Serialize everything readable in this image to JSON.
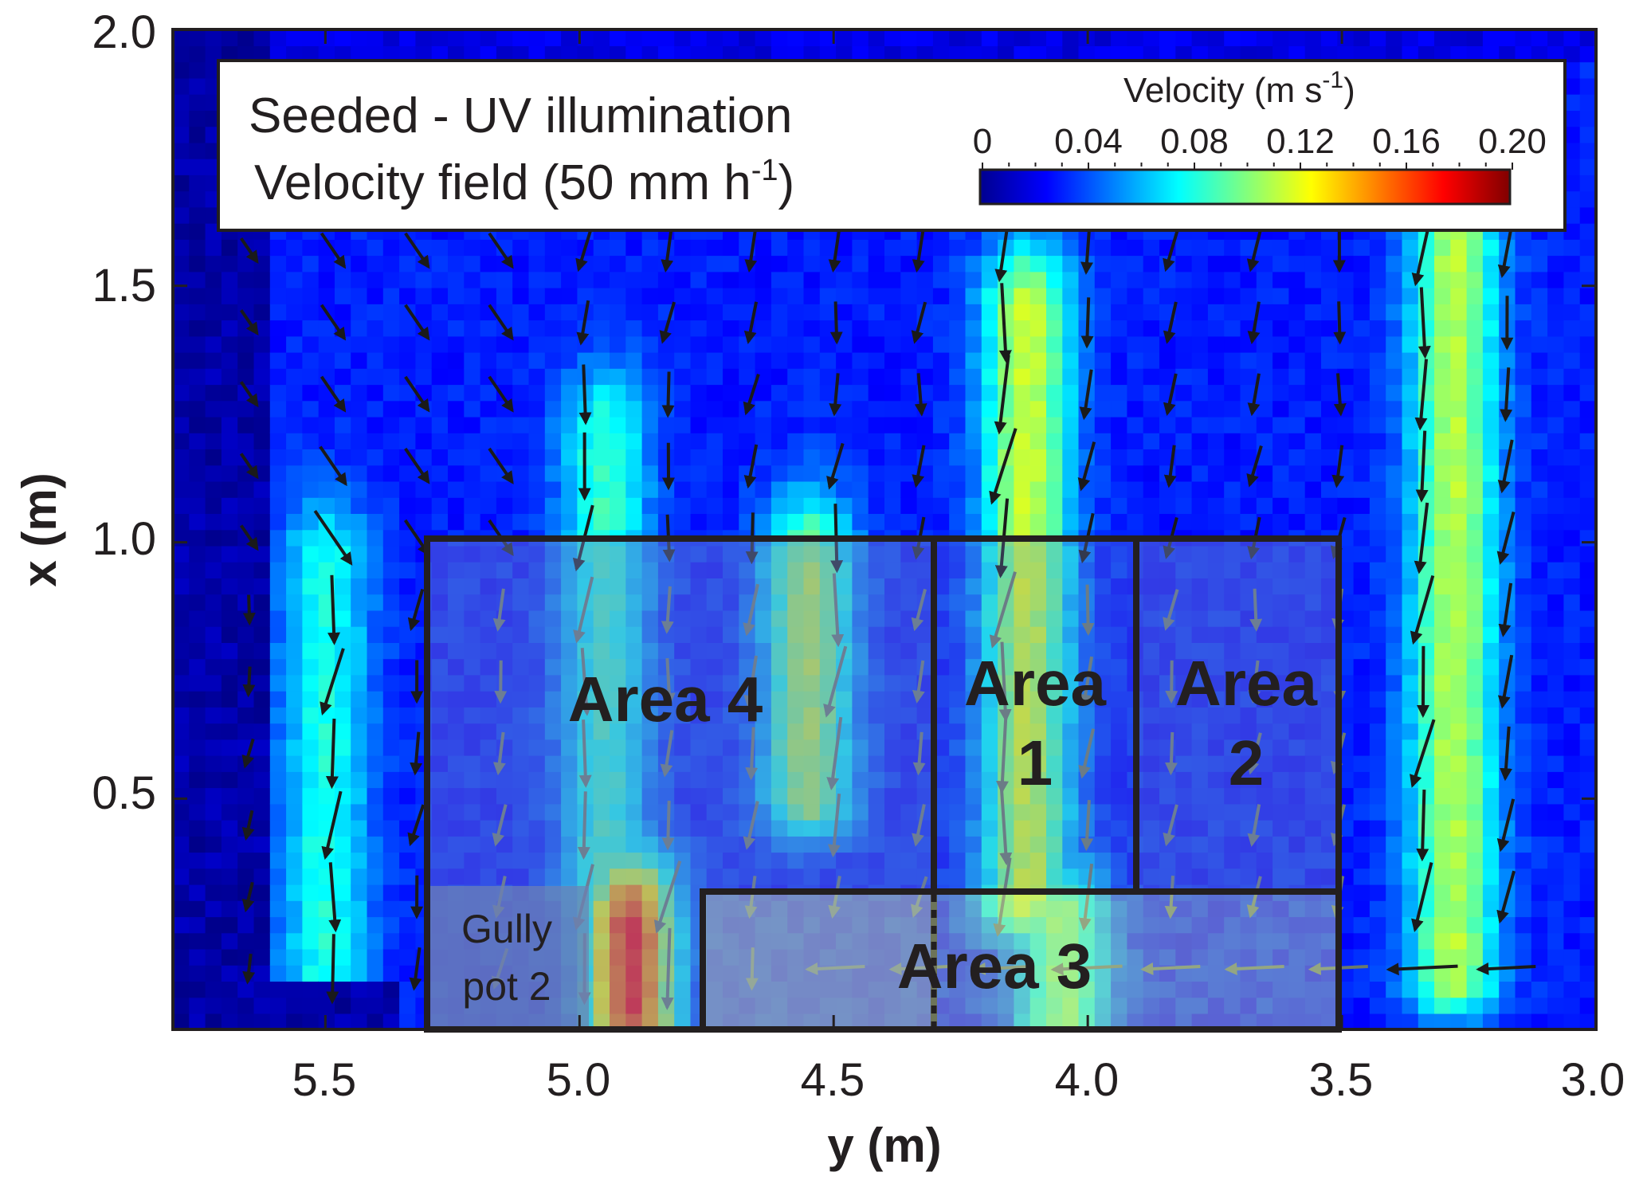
{
  "chart_data": {
    "type": "heatmap",
    "subtype": "velocity vector field (PIV)",
    "xlabel": "y (m)",
    "ylabel": "x (m)",
    "x_axis_reversed": true,
    "xlim": [
      5.8,
      3.0
    ],
    "ylim": [
      0.05,
      2.0
    ],
    "x_ticks": [
      "5.5",
      "5.0",
      "4.5",
      "4.0",
      "3.5",
      "3.0"
    ],
    "y_ticks": [
      "0.5",
      "1.0",
      "1.5",
      "2.0"
    ],
    "grid": false,
    "legend": {
      "line1": "Seeded - UV illumination",
      "line2": "Velocity field (50 mm h",
      "line2_sup": "-1",
      "line2_end": ")"
    },
    "colorbar": {
      "title": "Velocity (m s",
      "title_sup": "-1",
      "title_end": ")",
      "ticks": [
        "0",
        "0.04",
        "0.08",
        "0.12",
        "0.16",
        "0.20"
      ],
      "range": [
        0,
        0.2
      ],
      "colormap": "jet"
    },
    "areas": [
      {
        "name": "area4",
        "label": "Area 4",
        "y_range": [
          5.3,
          4.3
        ],
        "x_range": [
          0.3,
          1.0
        ]
      },
      {
        "name": "area1",
        "label_line1": "Area",
        "label_line2": "1",
        "y_range": [
          4.3,
          3.9
        ],
        "x_range": [
          0.3,
          1.0
        ]
      },
      {
        "name": "area2",
        "label_line1": "Area",
        "label_line2": "2",
        "y_range": [
          3.9,
          3.5
        ],
        "x_range": [
          0.3,
          1.0
        ]
      },
      {
        "name": "area3",
        "label": "Area 3",
        "y_range": [
          4.75,
          3.5
        ],
        "x_range": [
          0.05,
          0.3
        ]
      }
    ],
    "gully_pot": {
      "label_line1": "Gully",
      "label_line2": "pot 2",
      "y_range": [
        5.3,
        4.98
      ],
      "x_range": [
        0.05,
        0.35
      ]
    },
    "high_velocity_bands": [
      {
        "y_center": 5.5,
        "x_range": [
          0.15,
          0.95
        ],
        "peak_velocity": 0.08
      },
      {
        "y_center": 4.95,
        "x_range": [
          0.3,
          1.2
        ],
        "peak_velocity": 0.085
      },
      {
        "y_center": 4.55,
        "x_range": [
          0.5,
          0.95
        ],
        "peak_velocity": 0.11
      },
      {
        "y_center": 4.12,
        "x_range": [
          0.3,
          1.45
        ],
        "peak_velocity": 0.115
      },
      {
        "y_center": 3.28,
        "x_range": [
          0.15,
          1.7
        ],
        "peak_velocity": 0.11
      },
      {
        "y_center": 4.05,
        "x_range": [
          0.05,
          0.25
        ],
        "peak_velocity": 0.1
      },
      {
        "y_center": 4.9,
        "x_range": [
          0.08,
          0.25
        ],
        "peak_velocity": 0.17
      }
    ]
  }
}
